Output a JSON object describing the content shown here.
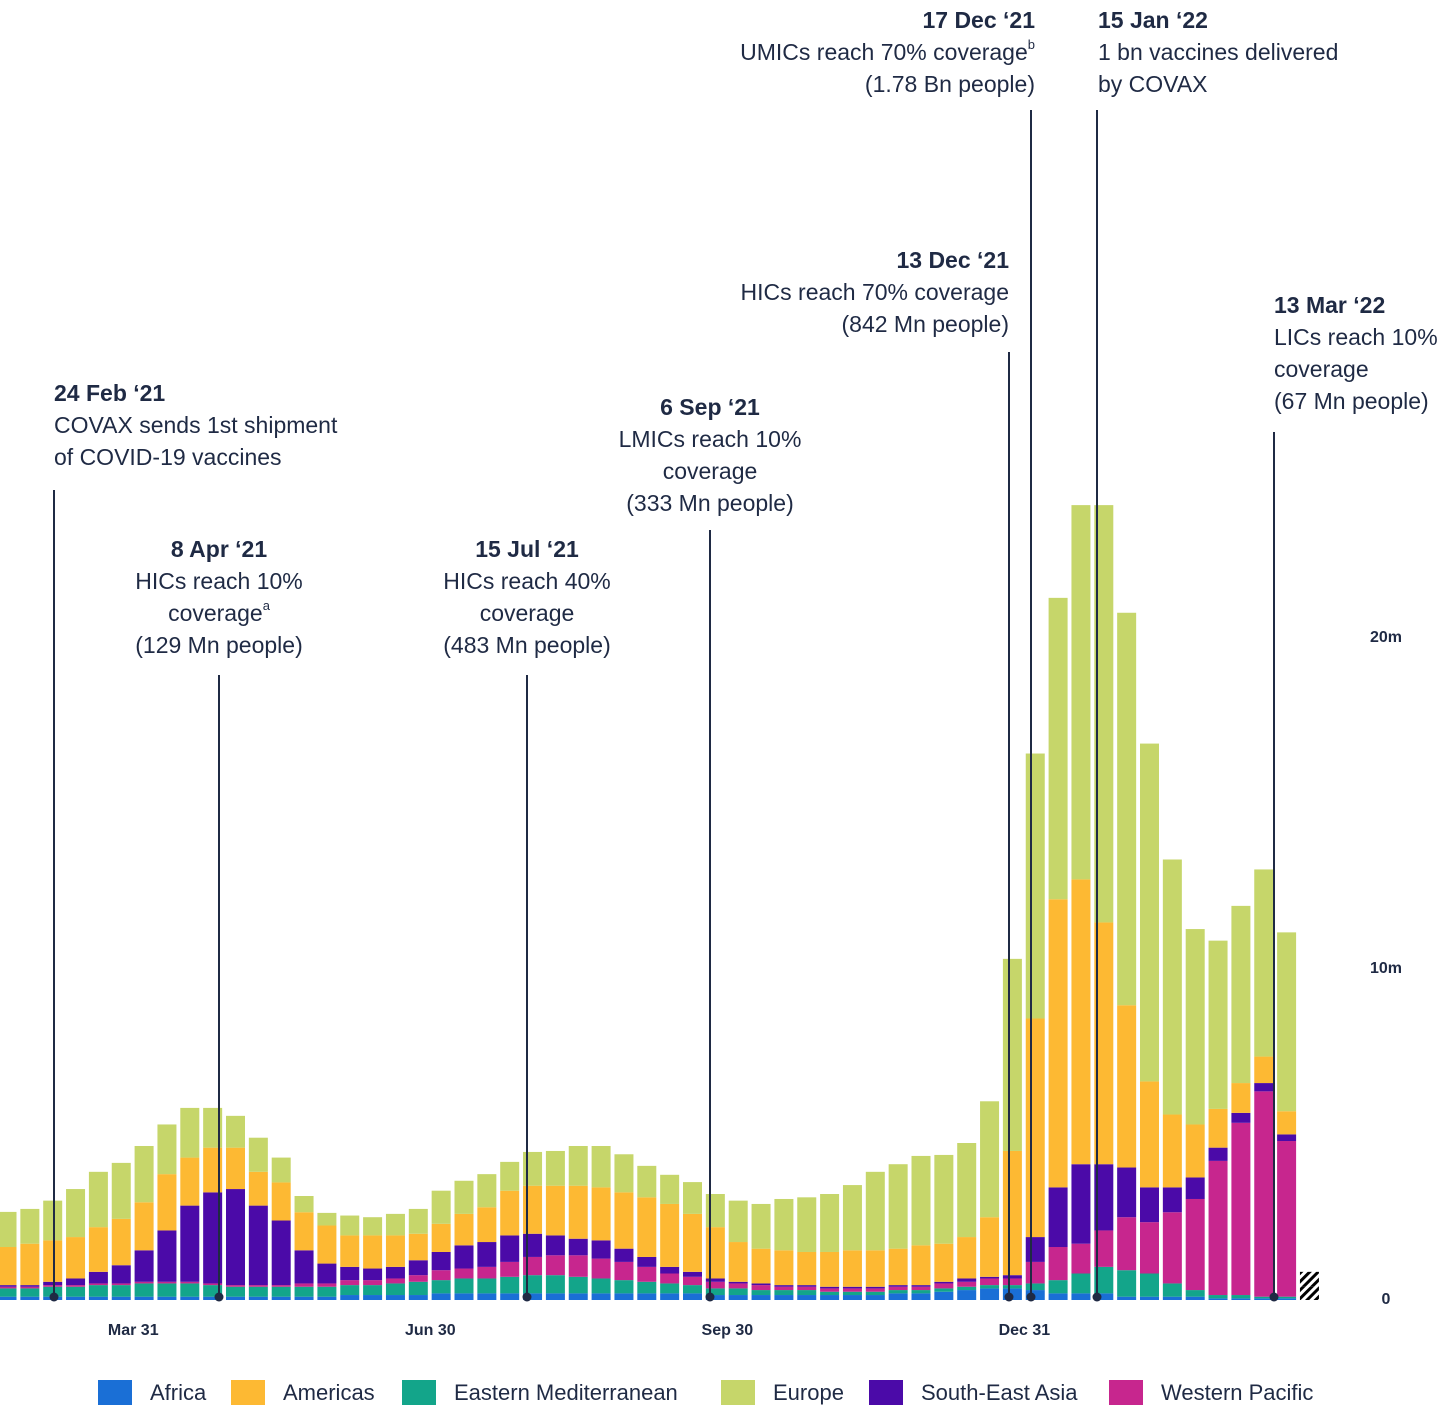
{
  "chart_data": {
    "type": "stacked_bar",
    "categories": [
      null,
      null,
      null,
      null,
      null,
      "Mar 31",
      null,
      null,
      null,
      null,
      null,
      null,
      null,
      null,
      null,
      null,
      null,
      null,
      "Jun 30",
      null,
      null,
      null,
      null,
      null,
      null,
      null,
      null,
      null,
      null,
      null,
      null,
      "Sep 30",
      null,
      null,
      null,
      null,
      null,
      null,
      null,
      null,
      null,
      null,
      null,
      null,
      "Dec 31",
      null,
      null,
      null,
      null,
      null,
      null,
      null,
      null,
      null,
      null,
      null,
      null,
      null
    ],
    "ylim": [
      0,
      25
    ],
    "yticks": [
      0,
      {
        "value": 10,
        "label": "10m"
      },
      {
        "value": 20,
        "label": "20m"
      }
    ],
    "series": [
      {
        "name": "Africa",
        "color": "#1a6fd6",
        "values": [
          0.1,
          0.1,
          0.1,
          0.1,
          0.1,
          0.1,
          0.1,
          0.1,
          0.1,
          0.1,
          0.1,
          0.1,
          0.1,
          0.1,
          0.1,
          0.15,
          0.15,
          0.15,
          0.15,
          0.2,
          0.2,
          0.2,
          0.2,
          0.2,
          0.2,
          0.2,
          0.2,
          0.2,
          0.2,
          0.2,
          0.2,
          0.15,
          0.15,
          0.15,
          0.15,
          0.15,
          0.15,
          0.15,
          0.15,
          0.2,
          0.2,
          0.25,
          0.3,
          0.35,
          0.35,
          0.3,
          0.2,
          0.2,
          0.2,
          0.1,
          0.1,
          0.1,
          0.1,
          0.05,
          0.05,
          0.05,
          0.05,
          0
        ]
      },
      {
        "name": "Americas",
        "color": "#fdb933",
        "values": [
          1.15,
          1.25,
          1.25,
          1.25,
          1.35,
          1.4,
          1.45,
          1.7,
          1.45,
          1.35,
          1.25,
          1.02,
          1.15,
          1.15,
          1.15,
          0.95,
          1.0,
          0.95,
          0.8,
          0.85,
          0.95,
          1.05,
          1.35,
          1.45,
          1.5,
          1.6,
          1.6,
          1.7,
          1.8,
          1.9,
          1.75,
          1.55,
          1.2,
          1.05,
          1.05,
          1.0,
          1.05,
          1.1,
          1.1,
          1.1,
          1.2,
          1.15,
          1.25,
          1.8,
          3.75,
          6.6,
          8.7,
          8.6,
          7.3,
          4.9,
          3.2,
          2.2,
          1.6,
          1.17,
          0.9,
          0.8,
          0.7,
          0
        ]
      },
      {
        "name": "Eastern Mediterranean",
        "color": "#13a58a",
        "values": [
          0.25,
          0.25,
          0.3,
          0.3,
          0.35,
          0.35,
          0.4,
          0.4,
          0.4,
          0.35,
          0.3,
          0.3,
          0.3,
          0.3,
          0.3,
          0.3,
          0.3,
          0.35,
          0.4,
          0.4,
          0.45,
          0.45,
          0.5,
          0.55,
          0.55,
          0.5,
          0.45,
          0.4,
          0.35,
          0.3,
          0.25,
          0.2,
          0.2,
          0.15,
          0.15,
          0.15,
          0.1,
          0.1,
          0.1,
          0.1,
          0.1,
          0.1,
          0.1,
          0.1,
          0.1,
          0.2,
          0.4,
          0.6,
          0.8,
          0.8,
          0.7,
          0.4,
          0.2,
          0.1,
          0.1,
          0.05,
          0.05,
          0
        ]
      },
      {
        "name": "Europe",
        "color": "#c6d66a",
        "values": [
          1.06,
          1.05,
          1.2,
          1.45,
          1.67,
          1.69,
          1.7,
          1.5,
          1.5,
          1.2,
          0.96,
          1.03,
          0.75,
          0.49,
          0.38,
          0.6,
          0.55,
          0.65,
          0.75,
          1.0,
          1.0,
          1.0,
          0.87,
          1.02,
          1.05,
          1.2,
          1.25,
          1.15,
          0.95,
          0.88,
          0.96,
          1.0,
          1.25,
          1.35,
          1.55,
          1.65,
          1.75,
          1.97,
          2.37,
          2.55,
          2.7,
          2.68,
          2.84,
          3.5,
          5.8,
          8.0,
          9.1,
          11.3,
          12.6,
          11.85,
          10.2,
          7.7,
          5.9,
          5.08,
          5.35,
          5.65,
          5.4,
          0.45
        ]
      },
      {
        "name": "South-East Asia",
        "color": "#4b0aa8",
        "values": [
          0.05,
          0.05,
          0.1,
          0.2,
          0.35,
          0.55,
          0.95,
          1.55,
          2.3,
          2.75,
          2.9,
          2.4,
          1.95,
          1.0,
          0.6,
          0.4,
          0.35,
          0.35,
          0.45,
          0.55,
          0.7,
          0.75,
          0.8,
          0.7,
          0.6,
          0.5,
          0.55,
          0.4,
          0.3,
          0.2,
          0.15,
          0.1,
          0.05,
          0.05,
          0.05,
          0.05,
          0.05,
          0.05,
          0.05,
          0.05,
          0.05,
          0.05,
          0.1,
          0.05,
          0.1,
          0.75,
          1.8,
          2.4,
          2.0,
          1.5,
          1.05,
          0.75,
          0.65,
          0.4,
          0.3,
          0.25,
          0.2,
          0
        ]
      },
      {
        "name": "Western Pacific",
        "color": "#c7268e",
        "values": [
          0.05,
          0.05,
          0.05,
          0.05,
          0.05,
          0.05,
          0.05,
          0.05,
          0.05,
          0.05,
          0.05,
          0.05,
          0.05,
          0.1,
          0.1,
          0.15,
          0.15,
          0.15,
          0.2,
          0.3,
          0.3,
          0.35,
          0.45,
          0.55,
          0.6,
          0.65,
          0.6,
          0.55,
          0.45,
          0.3,
          0.25,
          0.2,
          0.15,
          0.15,
          0.1,
          0.1,
          0.1,
          0.1,
          0.1,
          0.1,
          0.1,
          0.15,
          0.15,
          0.2,
          0.2,
          0.65,
          1.0,
          0.9,
          1.1,
          1.6,
          1.55,
          2.15,
          2.75,
          4.05,
          5.2,
          6.2,
          4.7,
          0.4
        ]
      }
    ],
    "annotations": [
      {
        "date": "24 Feb ‘21",
        "lines": [
          "COVAX sends 1st shipment",
          "of COVID-19 vaccines"
        ]
      },
      {
        "date": "8 Apr ‘21",
        "lines": [
          "HICs reach 10%",
          "coverage",
          "(129 Mn people)"
        ],
        "mark": "a"
      },
      {
        "date": "15 Jul ‘21",
        "lines": [
          "HICs reach 40%",
          "coverage",
          "(483 Mn people)"
        ]
      },
      {
        "date": "6 Sep ‘21",
        "lines": [
          "LMICs reach 10%",
          "coverage",
          "(333 Mn people)"
        ]
      },
      {
        "date": "13 Dec ‘21",
        "lines": [
          "HICs reach 70% coverage",
          "(842 Mn people)"
        ]
      },
      {
        "date": "17 Dec ‘21",
        "lines": [
          "UMICs reach 70% coverage",
          "(1.78 Bn people)"
        ],
        "mark": "b"
      },
      {
        "date": "15 Jan ‘22",
        "lines": [
          "1 bn vaccines delivered",
          "by COVAX"
        ]
      },
      {
        "date": "13 Mar ‘22",
        "lines": [
          "LICs reach 10%",
          "coverage",
          "(67 Mn people)"
        ]
      }
    ]
  }
}
